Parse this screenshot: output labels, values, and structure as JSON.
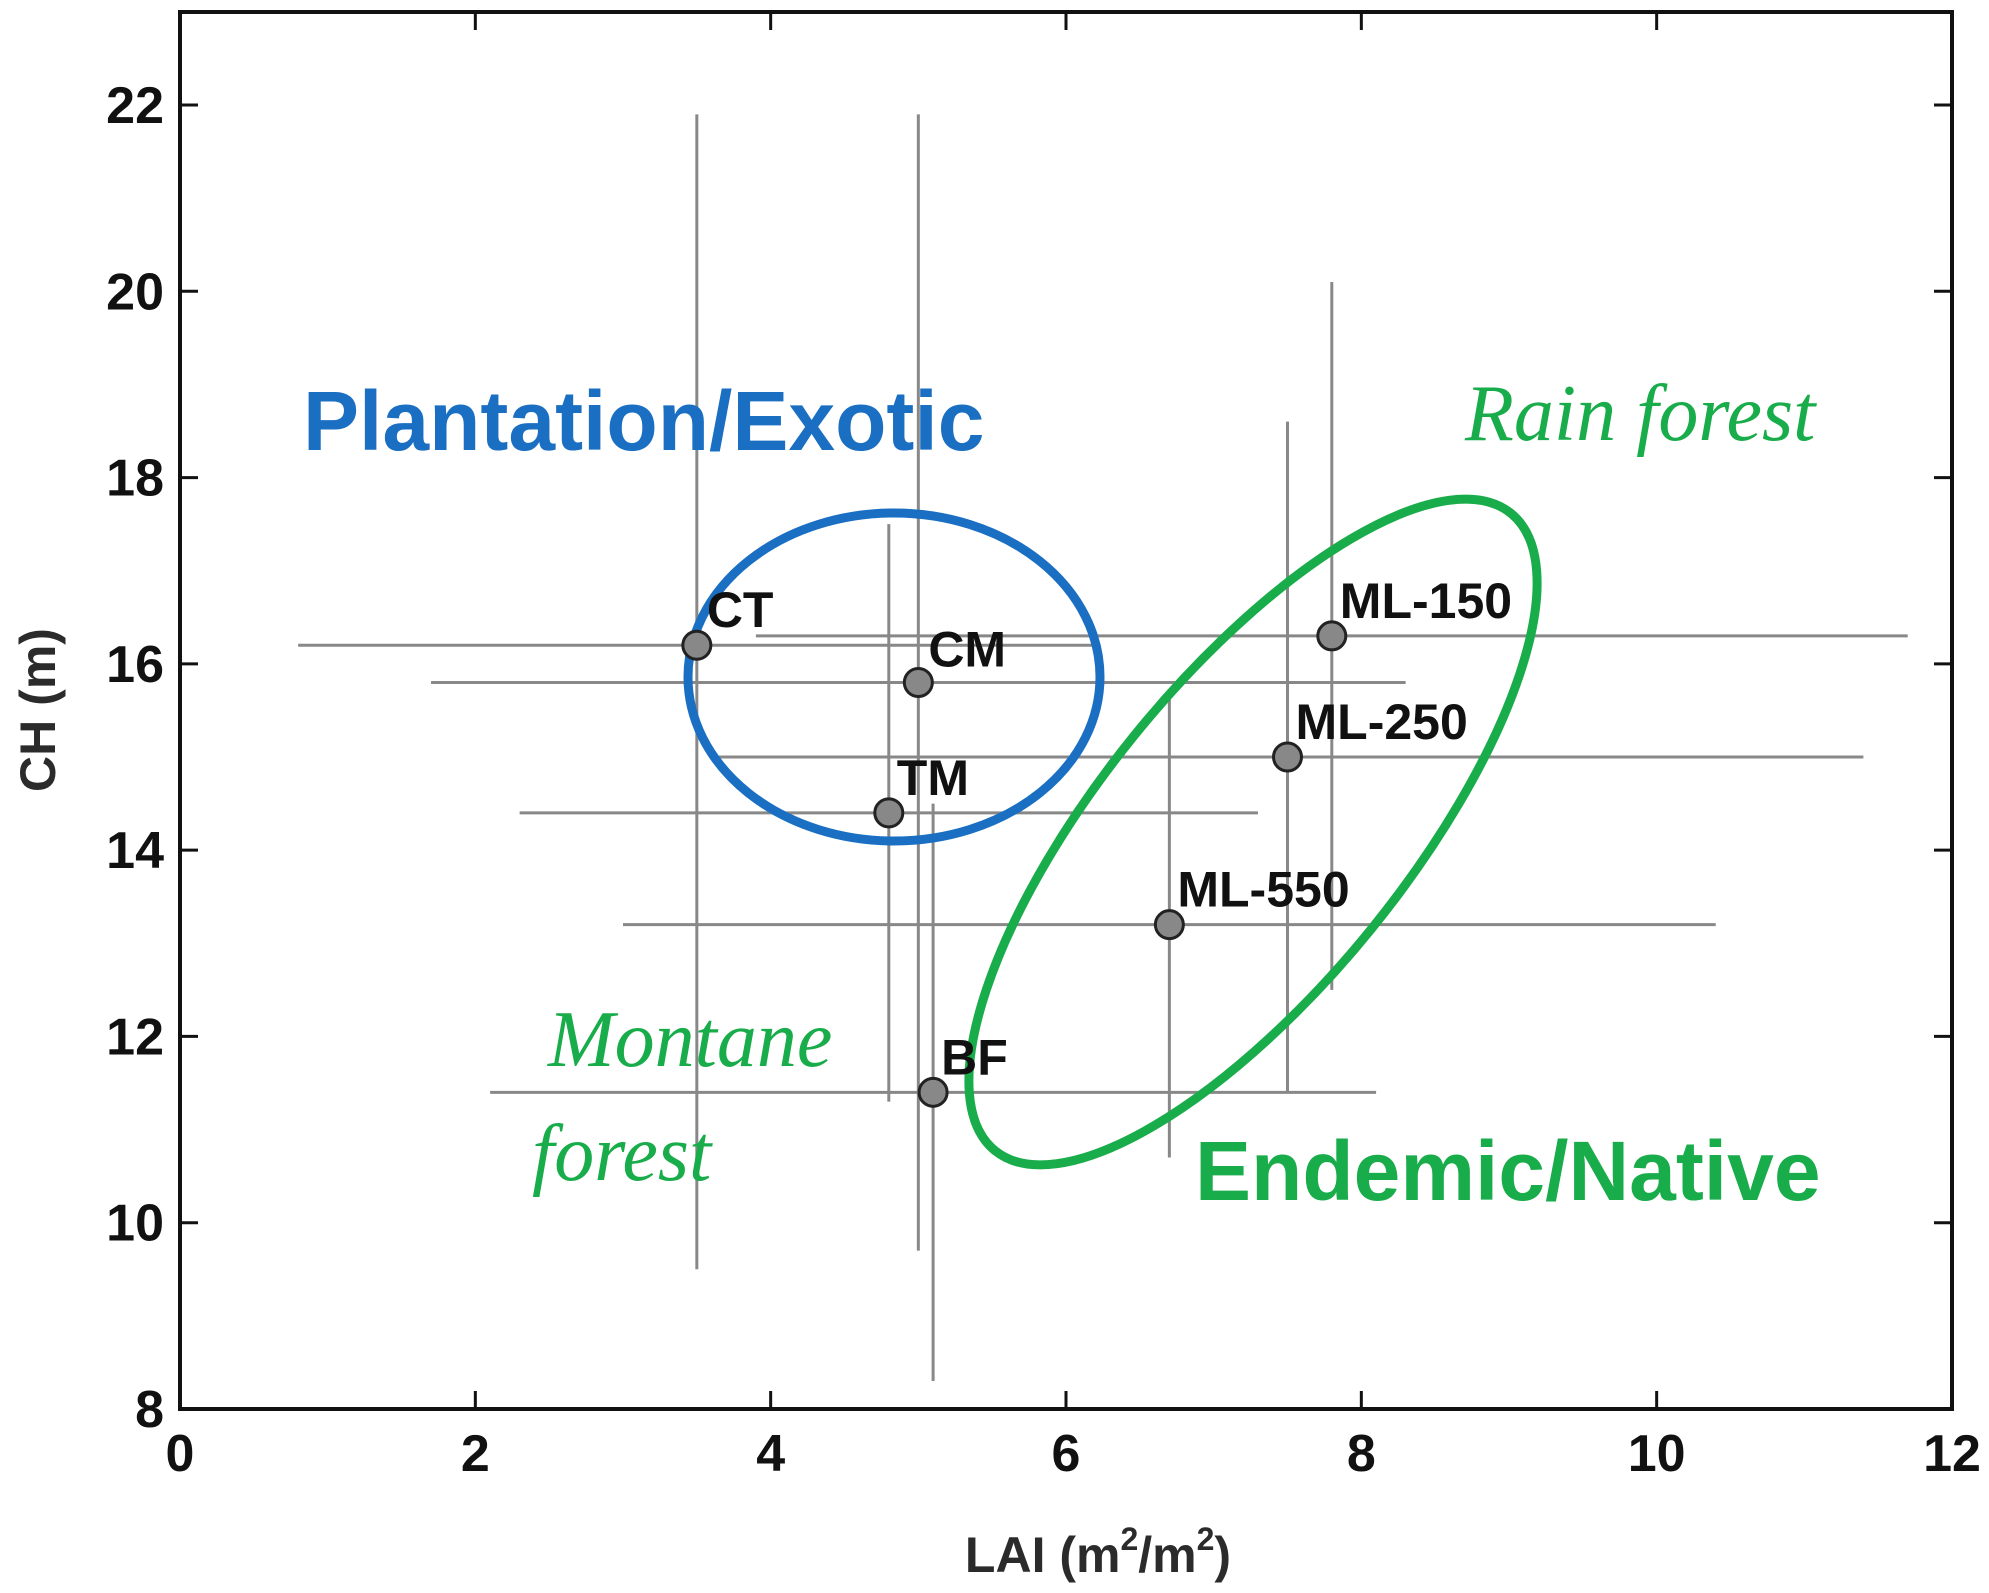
{
  "colors": {
    "plantation": "#1a6fc2",
    "endemic": "#19ac4b",
    "errorbar": "#888888",
    "marker_fill": "#888888",
    "marker_edge": "#222222"
  },
  "chart_data": {
    "type": "scatter",
    "title": "",
    "xlabel_main": "LAI (m",
    "xlabel_sup1": "2",
    "xlabel_mid": "/m",
    "xlabel_sup2": "2",
    "xlabel_end": ")",
    "ylabel": "CH (m)",
    "xlim": [
      0,
      12
    ],
    "ylim": [
      8,
      23
    ],
    "xticks": [
      0,
      2,
      4,
      6,
      8,
      10,
      12
    ],
    "yticks": [
      8,
      10,
      12,
      14,
      16,
      18,
      20,
      22
    ],
    "grid": false,
    "points": [
      {
        "label": "CT",
        "x": 3.5,
        "y": 16.2,
        "xerr": [
          0.8,
          6.2
        ],
        "yerr": [
          9.5,
          21.9
        ]
      },
      {
        "label": "CM",
        "x": 5.0,
        "y": 15.8,
        "xerr": [
          1.7,
          8.3
        ],
        "yerr": [
          9.7,
          21.9
        ]
      },
      {
        "label": "TM",
        "x": 4.8,
        "y": 14.4,
        "xerr": [
          2.3,
          7.3
        ],
        "yerr": [
          11.3,
          17.5
        ]
      },
      {
        "label": "ML-150",
        "x": 7.8,
        "y": 16.3,
        "xerr": [
          3.9,
          11.7
        ],
        "yerr": [
          12.5,
          20.1
        ]
      },
      {
        "label": "ML-250",
        "x": 7.5,
        "y": 15.0,
        "xerr": [
          3.6,
          11.4
        ],
        "yerr": [
          11.4,
          18.6
        ]
      },
      {
        "label": "ML-550",
        "x": 6.7,
        "y": 13.2,
        "xerr": [
          3.0,
          10.4
        ],
        "yerr": [
          10.7,
          15.7
        ]
      },
      {
        "label": "BF",
        "x": 5.1,
        "y": 11.4,
        "xerr": [
          2.1,
          8.1
        ],
        "yerr": [
          8.3,
          14.5
        ]
      }
    ],
    "annotations": {
      "plantation": "Plantation/Exotic",
      "endemic": "Endemic/Native",
      "rain_forest": "Rain forest",
      "montane_line1": "Montane",
      "montane_line2": "forest"
    }
  }
}
